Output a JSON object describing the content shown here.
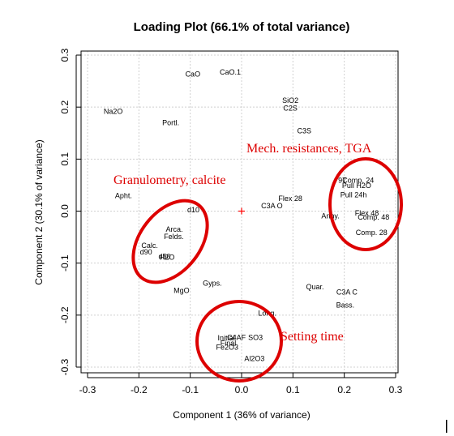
{
  "chart_data": {
    "type": "scatter",
    "title": "Loading Plot (66.1% of total variance)",
    "xlabel": "Component 1 (36% of variance)",
    "ylabel": "Component 2 (30.1% of variance)",
    "xlim": [
      -0.3,
      0.3
    ],
    "ylim": [
      -0.3,
      0.3
    ],
    "xticks": [
      "-0.3",
      "-0.2",
      "-0.1",
      "0.0",
      "0.1",
      "0.2",
      "0.3"
    ],
    "yticks": [
      "-0.3",
      "-0.2",
      "-0.1",
      "0.0",
      "0.1",
      "0.2",
      "0.3"
    ],
    "grid": true,
    "origin_marker": "+",
    "points": [
      {
        "label": "CaO",
        "x": -0.095,
        "y": 0.263
      },
      {
        "label": "CaO.1",
        "x": -0.022,
        "y": 0.267
      },
      {
        "label": "Na2O",
        "x": -0.25,
        "y": 0.192
      },
      {
        "label": "Portl.",
        "x": -0.138,
        "y": 0.17
      },
      {
        "label": "SiO2",
        "x": 0.095,
        "y": 0.213
      },
      {
        "label": "C2S",
        "x": 0.095,
        "y": 0.198
      },
      {
        "label": "C3S",
        "x": 0.122,
        "y": 0.154
      },
      {
        "label": "97",
        "x": 0.196,
        "y": 0.059
      },
      {
        "label": "Comp. 24",
        "x": 0.227,
        "y": 0.059
      },
      {
        "label": "Pull H2O",
        "x": 0.224,
        "y": 0.049
      },
      {
        "label": "Pull 24h",
        "x": 0.218,
        "y": 0.031
      },
      {
        "label": "Flex 28",
        "x": 0.095,
        "y": 0.024
      },
      {
        "label": "C3A O",
        "x": 0.059,
        "y": 0.01
      },
      {
        "label": "Anhy.",
        "x": 0.173,
        "y": -0.009
      },
      {
        "label": "Flex 48",
        "x": 0.244,
        "y": -0.004
      },
      {
        "label": "Comp. 48",
        "x": 0.257,
        "y": -0.012
      },
      {
        "label": "Comp. 28",
        "x": 0.253,
        "y": -0.041
      },
      {
        "label": "Apht.",
        "x": -0.23,
        "y": 0.03
      },
      {
        "label": "d10",
        "x": -0.094,
        "y": 0.002
      },
      {
        "label": "Arca.",
        "x": -0.131,
        "y": -0.035
      },
      {
        "label": "Felds.",
        "x": -0.132,
        "y": -0.049
      },
      {
        "label": "Calc.",
        "x": -0.179,
        "y": -0.066
      },
      {
        "label": "d90",
        "x": -0.186,
        "y": -0.079
      },
      {
        "label": "d50",
        "x": -0.15,
        "y": -0.087
      },
      {
        "label": "H2O",
        "x": -0.145,
        "y": -0.089
      },
      {
        "label": "MgO",
        "x": -0.117,
        "y": -0.153
      },
      {
        "label": "Gyps.",
        "x": -0.057,
        "y": -0.139
      },
      {
        "label": "Quar.",
        "x": 0.143,
        "y": -0.146
      },
      {
        "label": "C3A C",
        "x": 0.205,
        "y": -0.156
      },
      {
        "label": "Bass.",
        "x": 0.202,
        "y": -0.181
      },
      {
        "label": "Long.",
        "x": 0.05,
        "y": -0.196
      },
      {
        "label": "Initial",
        "x": -0.03,
        "y": -0.244
      },
      {
        "label": "C4AF",
        "x": -0.01,
        "y": -0.243
      },
      {
        "label": "SO3",
        "x": 0.027,
        "y": -0.243
      },
      {
        "label": "Final",
        "x": -0.026,
        "y": -0.254
      },
      {
        "label": "Fe2O3",
        "x": -0.028,
        "y": -0.262
      },
      {
        "label": "Al2O3",
        "x": 0.025,
        "y": -0.284
      }
    ],
    "groups": [
      {
        "label": "Mech. resistances, TGA",
        "color": "#dd0000"
      },
      {
        "label": "Granulometry, calcite",
        "color": "#dd0000"
      },
      {
        "label": "Setting time",
        "color": "#dd0000"
      }
    ]
  }
}
